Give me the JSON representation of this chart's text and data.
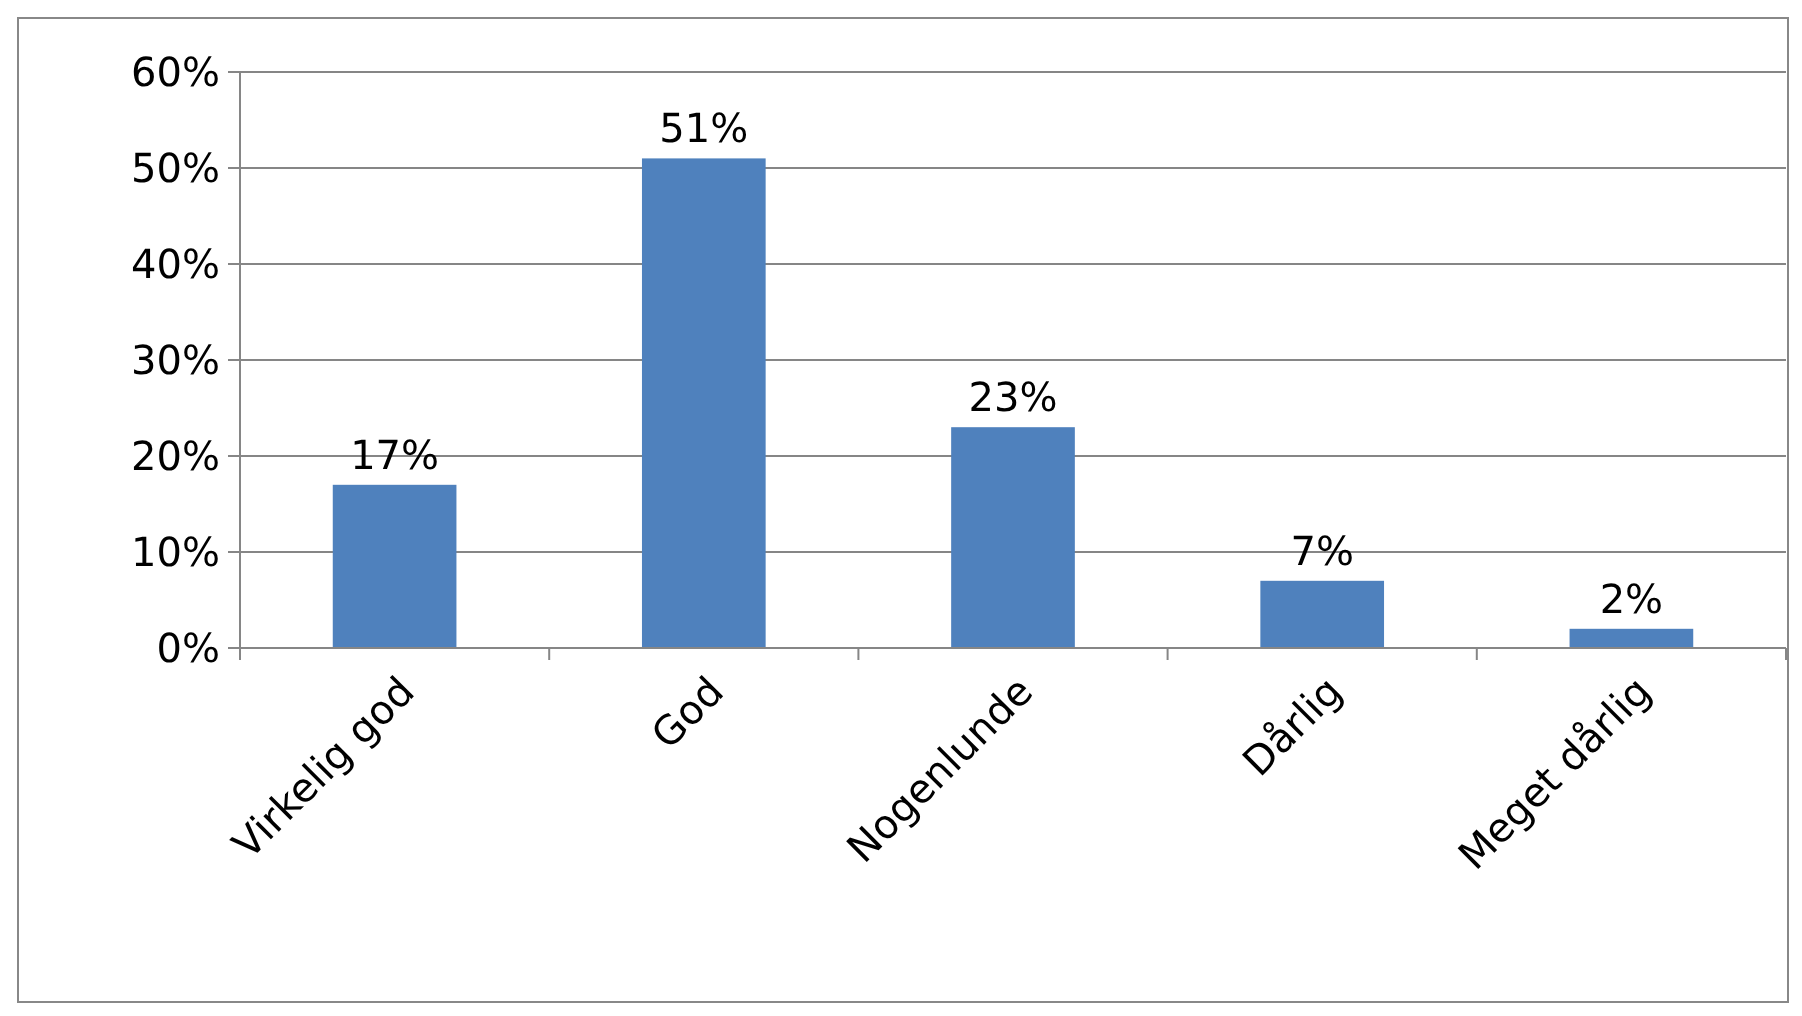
{
  "chart_data": {
    "type": "bar",
    "categories": [
      "Virkelig god",
      "God",
      "Nogenlunde",
      "Dårlig",
      "Meget dårlig"
    ],
    "values": [
      17,
      51,
      23,
      7,
      2
    ],
    "value_labels": [
      "17%",
      "51%",
      "23%",
      "7%",
      "2%"
    ],
    "color": "#4f81bd",
    "ylim": [
      0,
      60
    ],
    "yticks": [
      {
        "value": 0,
        "label": "0%"
      },
      {
        "value": 10,
        "label": "10%"
      },
      {
        "value": 20,
        "label": "20%"
      },
      {
        "value": 30,
        "label": "30%"
      },
      {
        "value": 40,
        "label": "40%"
      },
      {
        "value": 50,
        "label": "50%"
      },
      {
        "value": 60,
        "label": "60%"
      }
    ],
    "grid": "y"
  }
}
